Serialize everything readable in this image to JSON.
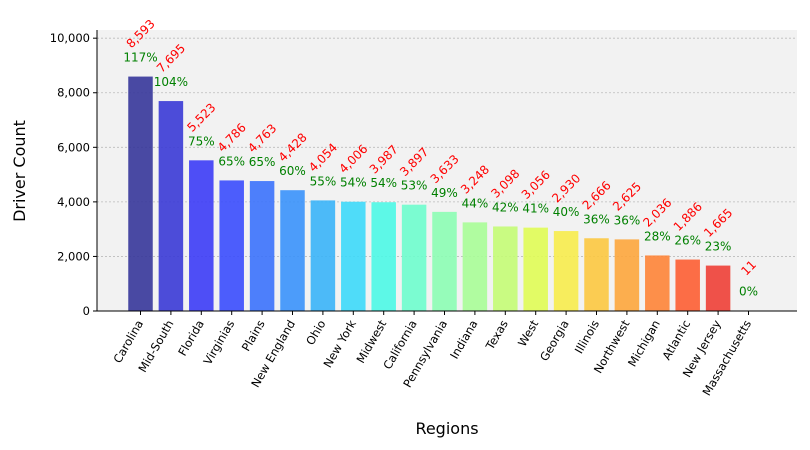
{
  "chart_data": {
    "type": "bar",
    "title": "",
    "xlabel": "Regions",
    "ylabel": "Driver Count",
    "ylim": [
      0,
      10300
    ],
    "yticks": [
      "0",
      "2,000",
      "4,000",
      "6,000",
      "8,000",
      "10,000"
    ],
    "ytick_values": [
      0,
      2000,
      4000,
      6000,
      8000,
      10000
    ],
    "grid": true,
    "categories": [
      "Carolina",
      "Mid-South",
      "Florida",
      "Virginias",
      "Plains",
      "New England",
      "Ohio",
      "New York",
      "Midwest",
      "California",
      "Pennsylvania",
      "Indiana",
      "Texas",
      "West",
      "Georgia",
      "Illinois",
      "Northwest",
      "Michigan",
      "Atlantic",
      "New Jersey",
      "Massachusetts"
    ],
    "values": [
      8593,
      7695,
      5523,
      4786,
      4763,
      4428,
      4054,
      4006,
      3987,
      3897,
      3633,
      3248,
      3098,
      3056,
      2930,
      2666,
      2625,
      2036,
      1886,
      1665,
      11
    ],
    "value_labels": [
      "8,593",
      "7,695",
      "5,523",
      "4,786",
      "4,763",
      "4,428",
      "4,054",
      "4,006",
      "3,987",
      "3,897",
      "3,633",
      "3,248",
      "3,098",
      "3,056",
      "2,930",
      "2,666",
      "2,625",
      "2,036",
      "1,886",
      "1,665",
      "11"
    ],
    "percent_labels": [
      "117%",
      "104%",
      "75%",
      "65%",
      "65%",
      "60%",
      "55%",
      "54%",
      "54%",
      "53%",
      "49%",
      "44%",
      "42%",
      "41%",
      "40%",
      "36%",
      "36%",
      "28%",
      "26%",
      "23%",
      "0%"
    ],
    "colors": {
      "value_label": "#ff0000",
      "percent_label": "#008000",
      "plot_background": "#f2f2f2",
      "bars": [
        "#36369a",
        "#3a3ad6",
        "#3c3cf6",
        "#3a4cfd",
        "#3b72fc",
        "#3a92fb",
        "#3ab4f8",
        "#3dd9f9",
        "#4cf8e6",
        "#6efdcd",
        "#8cfdb4",
        "#a8fd97",
        "#c4fc76",
        "#e0fc55",
        "#f7ec4c",
        "#fcc840",
        "#fda63c",
        "#fe8437",
        "#fd5e33",
        "#ee3f36",
        "#cccccc"
      ]
    }
  }
}
